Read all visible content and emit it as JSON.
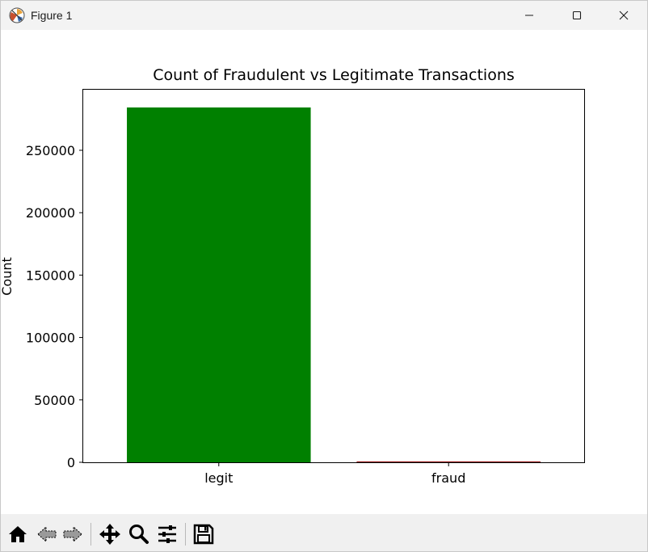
{
  "window": {
    "title": "Figure 1",
    "icons": [
      "matplotlib-figure-icon",
      "minimize-icon",
      "maximize-icon",
      "close-icon"
    ]
  },
  "toolbar": {
    "buttons": [
      {
        "name": "home-button",
        "icon": "home-icon"
      },
      {
        "name": "back-button",
        "icon": "back-arrow-icon"
      },
      {
        "name": "forward-button",
        "icon": "forward-arrow-icon"
      },
      {
        "name": "pan-button",
        "icon": "pan-move-icon"
      },
      {
        "name": "zoom-button",
        "icon": "zoom-magnifier-icon"
      },
      {
        "name": "configure-subplots-button",
        "icon": "sliders-icon"
      },
      {
        "name": "save-button",
        "icon": "floppy-disk-icon"
      }
    ]
  },
  "chart_data": {
    "type": "bar",
    "title": "Count of Fraudulent vs Legitimate Transactions",
    "xlabel": "",
    "ylabel": "Count",
    "categories": [
      "legit",
      "fraud"
    ],
    "values": [
      284315,
      492
    ],
    "colors": [
      "#008000",
      "#8b0000"
    ],
    "ylim": [
      0,
      298536
    ],
    "yticks": [
      0,
      50000,
      100000,
      150000,
      200000,
      250000
    ],
    "ytick_labels": [
      "0",
      "50000",
      "100000",
      "150000",
      "200000",
      "250000"
    ],
    "grid": false,
    "legend": "none"
  }
}
